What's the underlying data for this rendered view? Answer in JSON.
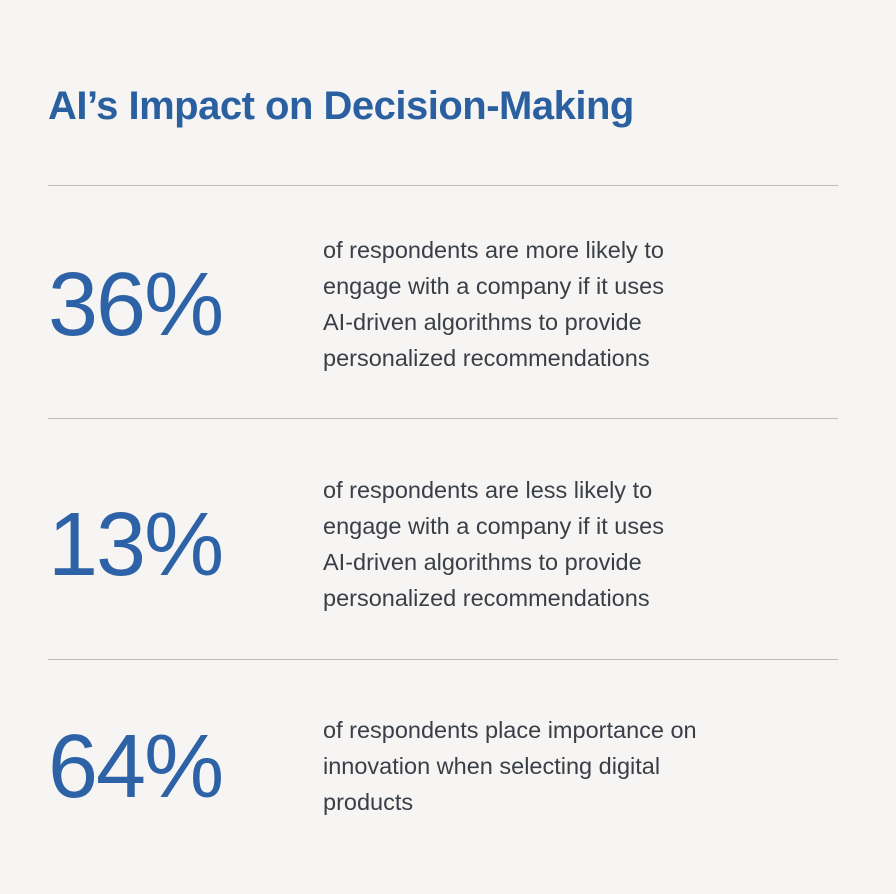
{
  "title": "AI’s Impact on Decision-Making",
  "stats": [
    {
      "value": "36%",
      "lines": [
        "of respondents are more likely to",
        "engage with a company if it uses",
        "AI-driven algorithms to provide",
        "personalized recommendations"
      ]
    },
    {
      "value": "13%",
      "lines": [
        "of respondents are less likely to",
        "engage with a company if it uses",
        "AI-driven algorithms to provide",
        "personalized recommendations"
      ]
    },
    {
      "value": "64%",
      "lines": [
        "of respondents place importance on",
        "innovation when selecting digital",
        "products"
      ]
    }
  ]
}
